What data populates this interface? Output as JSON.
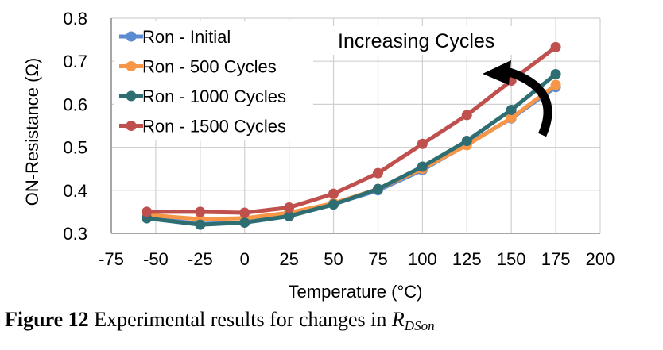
{
  "chart_data": {
    "type": "line",
    "x": [
      -55,
      -25,
      0,
      25,
      50,
      75,
      100,
      125,
      150,
      175
    ],
    "series": [
      {
        "name": "Ron - Initial",
        "color": "#5B8BD0",
        "values": [
          0.337,
          0.322,
          0.325,
          0.34,
          0.368,
          0.4,
          0.447,
          0.507,
          0.567,
          0.64
        ]
      },
      {
        "name": "Ron - 500 Cycles",
        "color": "#F79646",
        "values": [
          0.343,
          0.333,
          0.335,
          0.348,
          0.37,
          0.403,
          0.45,
          0.505,
          0.568,
          0.645
        ]
      },
      {
        "name": "Ron - 1000 Cycles",
        "color": "#2E6E73",
        "values": [
          0.335,
          0.32,
          0.325,
          0.34,
          0.367,
          0.403,
          0.455,
          0.515,
          0.587,
          0.67
        ]
      },
      {
        "name": "Ron - 1500 Cycles",
        "color": "#C0504D",
        "values": [
          0.35,
          0.35,
          0.348,
          0.36,
          0.392,
          0.44,
          0.508,
          0.575,
          0.655,
          0.733
        ]
      }
    ],
    "xlim": [
      -75,
      200
    ],
    "ylim": [
      0.3,
      0.8
    ],
    "xticks": [
      -75,
      -50,
      -25,
      0,
      25,
      50,
      75,
      100,
      125,
      150,
      175,
      200
    ],
    "xtick_labels": [
      "-75",
      "-50",
      "-25",
      "0",
      "25",
      "50",
      "75",
      "100",
      "125",
      "150",
      "175",
      "200"
    ],
    "yticks": [
      0.3,
      0.4,
      0.5,
      0.6,
      0.7,
      0.8
    ],
    "ytick_labels": [
      "0.3",
      "0.4",
      "0.5",
      "0.6",
      "0.7",
      "0.8"
    ],
    "xlabel": "Temperature (°C)",
    "ylabel": "ON-Resistance (Ω)",
    "grid": true,
    "legend_position": "top-left",
    "annotation": "Increasing Cycles"
  },
  "caption": {
    "figure_label": "Figure 12",
    "text": " Experimental results for changes in ",
    "symbol": "R",
    "symbol_subscript": "DSon"
  }
}
